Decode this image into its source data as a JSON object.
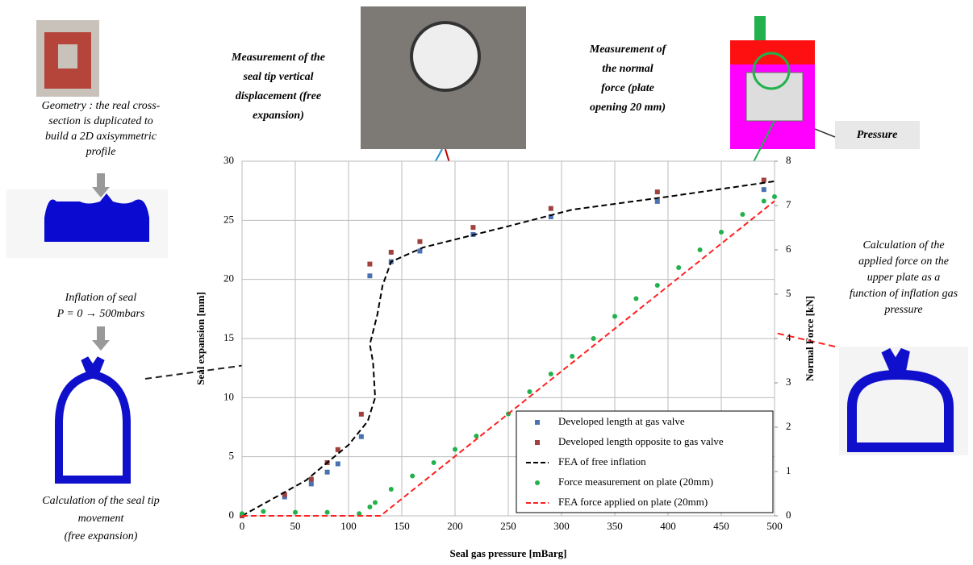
{
  "chart_data": {
    "type": "scatter",
    "x_label": "Seal gas pressure [mBarg]",
    "y_label": "Seal expansion [mm]",
    "y2_label": "Normal Force [kN]",
    "xlim": [
      0,
      500
    ],
    "xticks": [
      0,
      50,
      100,
      150,
      200,
      250,
      300,
      350,
      400,
      450,
      500
    ],
    "ylim": [
      0,
      30
    ],
    "yticks": [
      0,
      5,
      10,
      15,
      20,
      25,
      30
    ],
    "y2lim": [
      0,
      8
    ],
    "y2ticks": [
      0,
      1,
      2,
      3,
      4,
      5,
      6,
      7,
      8
    ],
    "grid": true,
    "legend": "lower right",
    "series": [
      {
        "name": "Developed length at gas valve",
        "color": "#4a72b0",
        "marker": "square",
        "x": [
          0,
          40,
          65,
          80,
          90,
          112,
          120,
          140,
          167,
          217,
          290,
          390,
          490
        ],
        "values": [
          0,
          1.6,
          2.7,
          3.7,
          4.4,
          6.7,
          20.3,
          21.5,
          22.4,
          23.8,
          25.3,
          26.6,
          27.6
        ]
      },
      {
        "name": "Developed length opposite to gas valve",
        "color": "#a0413e",
        "marker": "square",
        "x": [
          0,
          40,
          65,
          80,
          90,
          112,
          120,
          140,
          167,
          217,
          290,
          390,
          490
        ],
        "values": [
          0,
          1.8,
          3.1,
          4.5,
          5.6,
          8.6,
          21.3,
          22.3,
          23.2,
          24.4,
          26,
          27.4,
          28.4
        ]
      },
      {
        "name": "FEA of free inflation",
        "color": "#000000",
        "line_style": "dashed",
        "x": [
          0,
          60,
          100,
          118,
          125,
          123,
          120,
          127,
          132,
          140,
          170,
          210,
          250,
          310,
          400,
          500
        ],
        "values": [
          0,
          3,
          6,
          8,
          10,
          13,
          14.5,
          17,
          19.5,
          21.5,
          22.7,
          23.6,
          24.5,
          25.9,
          27,
          28.3
        ]
      },
      {
        "name": "Force measurement on plate (20mm)",
        "color": "#22b14c",
        "marker": "circle",
        "axis": "y2",
        "x": [
          0,
          20,
          50,
          80,
          110,
          120,
          125,
          140,
          160,
          180,
          200,
          220,
          250,
          270,
          290,
          310,
          330,
          350,
          370,
          390,
          410,
          430,
          450,
          470,
          490,
          500
        ],
        "values": [
          0.05,
          0.1,
          0.08,
          0.08,
          0.05,
          0.2,
          0.3,
          0.6,
          0.9,
          1.2,
          1.5,
          1.8,
          2.3,
          2.8,
          3.2,
          3.6,
          4.0,
          4.5,
          4.9,
          5.2,
          5.6,
          6.0,
          6.4,
          6.8,
          7.1,
          7.2
        ]
      },
      {
        "name": "FEA force applied on plate (20mm)",
        "color": "#ff2020",
        "line_style": "dashed",
        "axis": "y2",
        "x": [
          0,
          130,
          500
        ],
        "values": [
          0,
          0,
          7.1
        ]
      }
    ]
  },
  "annotations": [
    {
      "lines": [
        "Geometry : the real cross-",
        "section is duplicated to",
        "build a 2D axisymmetric",
        "profile"
      ]
    },
    {
      "lines": [
        "Inflation of seal",
        "P = 0 → 500mbars"
      ]
    },
    {
      "lines": [
        "Calculation of the seal tip",
        "movement",
        "(free expansion)"
      ]
    },
    {
      "lines": [
        "Measurement  of the",
        "seal tip vertical",
        "displacement (free",
        "expansion)"
      ]
    },
    {
      "lines": [
        "Measurement of",
        "the normal",
        "force (plate",
        "opening 20 mm)"
      ]
    },
    {
      "lines": [
        "Pressure"
      ]
    },
    {
      "lines": [
        "Calculation of the",
        "applied force on the",
        "upper plate as a",
        "function of inflation gas",
        "pressure"
      ]
    }
  ]
}
